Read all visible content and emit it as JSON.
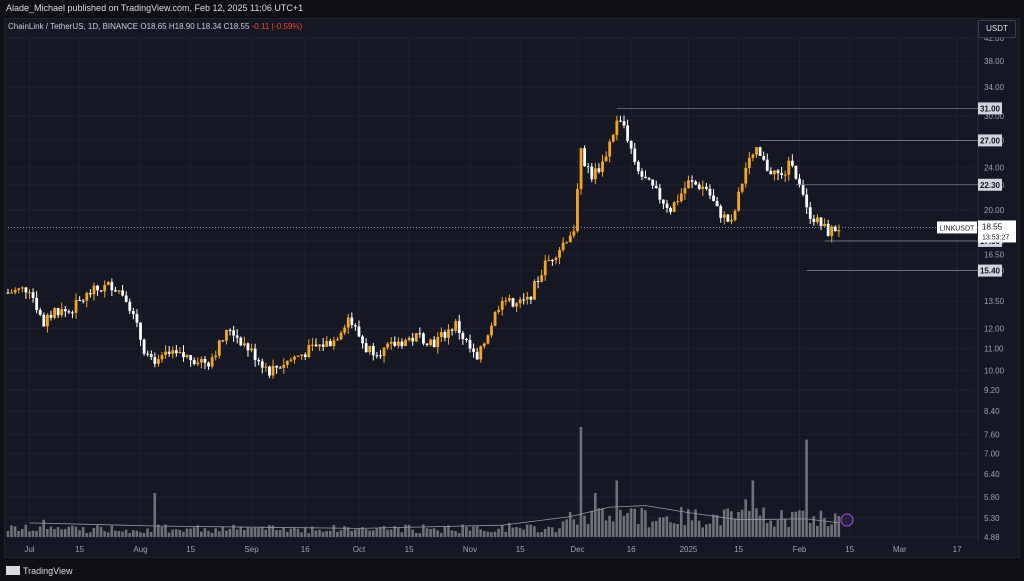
{
  "header": {
    "publisher_text": "Alade_Michael published on TradingView.com, Feb 12, 2025 11:06 UTC+1"
  },
  "legend": {
    "symbol": "ChainLink / TetherUS, 1D, BINANCE",
    "open": "O18.65",
    "high": "H18.90",
    "low": "L18.34",
    "close": "C18.55",
    "change": "-0.11 (-0.59%)"
  },
  "currency_button": "USDT",
  "footer": {
    "brand": "TradingView"
  },
  "colors": {
    "up": "#f5a623",
    "down": "#ffffff",
    "volume": "#8e8f94",
    "volume_ma": "#9598a1",
    "level": "#787b86",
    "background": "#151822"
  },
  "chart_data": {
    "type": "candlestick",
    "symbol": "LINKUSDT",
    "timeframe": "1D",
    "x_range": [
      "2024-06-25",
      "2025-03-22"
    ],
    "ylim": [
      4.88,
      42.0
    ],
    "y_scale": "log",
    "y_ticks": [
      "42.00",
      "38.00",
      "34.00",
      "30.00",
      "27.00",
      "24.00",
      "22.30",
      "20.00",
      "17.50",
      "16.50",
      "15.40",
      "13.50",
      "12.00",
      "11.00",
      "10.00",
      "9.20",
      "8.40",
      "7.60",
      "7.00",
      "6.40",
      "5.80",
      "5.30",
      "4.88"
    ],
    "x_ticks": [
      {
        "date": "2024-07-01",
        "label": "Jul"
      },
      {
        "date": "2024-07-15",
        "label": "15"
      },
      {
        "date": "2024-08-01",
        "label": "Aug"
      },
      {
        "date": "2024-08-15",
        "label": "15"
      },
      {
        "date": "2024-09-01",
        "label": "Sep"
      },
      {
        "date": "2024-09-16",
        "label": "16"
      },
      {
        "date": "2024-10-01",
        "label": "Oct"
      },
      {
        "date": "2024-10-15",
        "label": "15"
      },
      {
        "date": "2024-11-01",
        "label": "Nov"
      },
      {
        "date": "2024-11-15",
        "label": "15"
      },
      {
        "date": "2024-12-01",
        "label": "Dec"
      },
      {
        "date": "2024-12-16",
        "label": "16"
      },
      {
        "date": "2025-01-01",
        "label": "2025"
      },
      {
        "date": "2025-01-15",
        "label": "15"
      },
      {
        "date": "2025-02-01",
        "label": "Feb"
      },
      {
        "date": "2025-02-15",
        "label": "15"
      },
      {
        "date": "2025-03-01",
        "label": "Mar"
      },
      {
        "date": "2025-03-17",
        "label": "17"
      }
    ],
    "close_path": [
      [
        "2024-06-25",
        14.0
      ],
      [
        "2024-07-01",
        14.3
      ],
      [
        "2024-07-05",
        12.2
      ],
      [
        "2024-07-08",
        13.0
      ],
      [
        "2024-07-12",
        12.9
      ],
      [
        "2024-07-18",
        14.0
      ],
      [
        "2024-07-24",
        14.5
      ],
      [
        "2024-07-28",
        13.8
      ],
      [
        "2024-08-02",
        11.0
      ],
      [
        "2024-08-05",
        10.1
      ],
      [
        "2024-08-08",
        10.7
      ],
      [
        "2024-08-14",
        10.6
      ],
      [
        "2024-08-20",
        10.4
      ],
      [
        "2024-08-26",
        12.0
      ],
      [
        "2024-08-30",
        11.2
      ],
      [
        "2024-09-06",
        10.0
      ],
      [
        "2024-09-12",
        10.5
      ],
      [
        "2024-09-18",
        11.0
      ],
      [
        "2024-09-24",
        11.4
      ],
      [
        "2024-09-28",
        12.6
      ],
      [
        "2024-10-03",
        11.0
      ],
      [
        "2024-10-08",
        10.9
      ],
      [
        "2024-10-12",
        11.3
      ],
      [
        "2024-10-18",
        11.6
      ],
      [
        "2024-10-22",
        11.3
      ],
      [
        "2024-10-28",
        12.2
      ],
      [
        "2024-11-03",
        10.4
      ],
      [
        "2024-11-06",
        11.8
      ],
      [
        "2024-11-10",
        13.8
      ],
      [
        "2024-11-13",
        13.2
      ],
      [
        "2024-11-17",
        13.5
      ],
      [
        "2024-11-22",
        15.8
      ],
      [
        "2024-11-26",
        17.0
      ],
      [
        "2024-11-30",
        18.5
      ],
      [
        "2024-12-02",
        25.5
      ],
      [
        "2024-12-05",
        23.2
      ],
      [
        "2024-12-08",
        24.5
      ],
      [
        "2024-12-12",
        29.2
      ],
      [
        "2024-12-14",
        28.8
      ],
      [
        "2024-12-18",
        23.5
      ],
      [
        "2024-12-23",
        21.5
      ],
      [
        "2024-12-27",
        20.1
      ],
      [
        "2025-01-01",
        22.5
      ],
      [
        "2025-01-06",
        22.0
      ],
      [
        "2025-01-09",
        20.0
      ],
      [
        "2025-01-13",
        18.8
      ],
      [
        "2025-01-17",
        24.0
      ],
      [
        "2025-01-20",
        25.6
      ],
      [
        "2025-01-23",
        24.0
      ],
      [
        "2025-01-27",
        23.0
      ],
      [
        "2025-01-30",
        24.8
      ],
      [
        "2025-02-01",
        22.0
      ],
      [
        "2025-02-03",
        20.0
      ],
      [
        "2025-02-06",
        19.0
      ],
      [
        "2025-02-09",
        18.2
      ],
      [
        "2025-02-12",
        18.55
      ]
    ],
    "levels": [
      {
        "value": 31.0,
        "label": "31.00",
        "from": "2024-12-12"
      },
      {
        "value": 27.0,
        "label": "27.00",
        "from": "2025-01-21"
      },
      {
        "value": 22.3,
        "label": "22.30",
        "from": "2025-01-31"
      },
      {
        "value": 17.5,
        "label": "17.50",
        "from": "2025-02-08"
      },
      {
        "value": 15.4,
        "label": "15.40",
        "from": "2025-02-03"
      }
    ],
    "current_price": {
      "symbol_label": "LINKUSDT",
      "price": "18.55",
      "countdown": "13:53:27",
      "value": 18.55
    },
    "volume": {
      "scale_max": 8.4,
      "spikes": [
        [
          "2024-07-05",
          1.1
        ],
        [
          "2024-08-05",
          2.8
        ],
        [
          "2024-11-12",
          0.9
        ],
        [
          "2024-11-29",
          1.6
        ],
        [
          "2024-12-02",
          7.0
        ],
        [
          "2024-12-06",
          2.8
        ],
        [
          "2024-12-12",
          3.6
        ],
        [
          "2024-12-17",
          1.8
        ],
        [
          "2025-01-19",
          3.6
        ],
        [
          "2025-01-17",
          2.4
        ],
        [
          "2025-02-03",
          6.2
        ],
        [
          "2025-02-01",
          1.7
        ]
      ],
      "ma_path": [
        [
          "2024-07-01",
          0.9
        ],
        [
          "2024-08-05",
          0.7
        ],
        [
          "2024-10-01",
          0.55
        ],
        [
          "2024-11-10",
          0.75
        ],
        [
          "2024-11-29",
          1.3
        ],
        [
          "2024-12-10",
          1.9
        ],
        [
          "2024-12-20",
          2.0
        ],
        [
          "2025-01-01",
          1.55
        ],
        [
          "2025-01-15",
          1.1
        ],
        [
          "2025-02-03",
          1.15
        ],
        [
          "2025-02-12",
          0.9
        ]
      ]
    }
  }
}
